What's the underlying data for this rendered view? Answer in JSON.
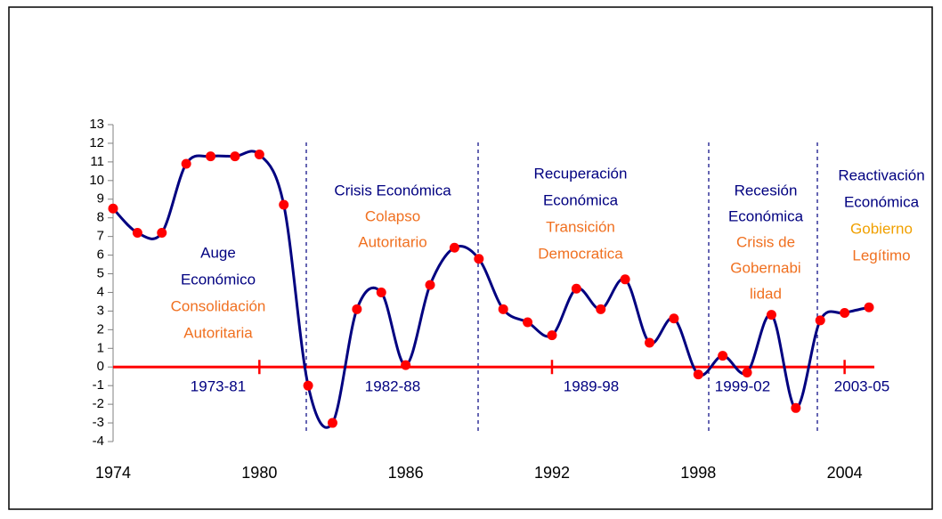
{
  "chart_data": {
    "type": "line",
    "x": [
      1974,
      1975,
      1976,
      1977,
      1978,
      1979,
      1980,
      1981,
      1982,
      1983,
      1984,
      1985,
      1986,
      1987,
      1988,
      1989,
      1990,
      1991,
      1992,
      1993,
      1994,
      1995,
      1996,
      1997,
      1998,
      1999,
      2000,
      2001,
      2002,
      2003,
      2004,
      2005
    ],
    "series": [
      {
        "color": "#000080",
        "marker_color": "#ff0000",
        "values": [
          8.5,
          7.2,
          7.2,
          10.9,
          11.3,
          11.3,
          11.4,
          8.7,
          -1.0,
          -3.0,
          3.1,
          4.0,
          0.1,
          4.4,
          6.4,
          5.8,
          3.1,
          2.4,
          1.7,
          4.2,
          3.1,
          4.7,
          1.3,
          2.6,
          -0.4,
          0.6,
          -0.3,
          2.8,
          -2.2,
          2.5,
          2.9,
          3.2
        ]
      }
    ],
    "xlim": [
      1974,
      2005
    ],
    "xticks": [
      1974,
      1980,
      1986,
      1992,
      1998,
      2004
    ],
    "ylim": [
      -4,
      13
    ],
    "yticks": [
      -4,
      -3,
      -2,
      -1,
      0,
      1,
      2,
      3,
      4,
      5,
      6,
      7,
      8,
      9,
      10,
      11,
      12,
      13
    ],
    "zero_line_color": "#ff0000",
    "periods": [
      "1973-81",
      "1982-88",
      "1989-98",
      "1999-02",
      "2003-05"
    ],
    "annotations": [
      {
        "lines": [
          {
            "text": "Auge",
            "color": "#000080"
          },
          {
            "text": "Económico",
            "color": "#000080"
          },
          {
            "text": "Consolidación",
            "color": "#f07020"
          },
          {
            "text": "Autoritaria",
            "color": "#f07020"
          }
        ]
      },
      {
        "lines": [
          {
            "text": "Crisis Económica",
            "color": "#000080"
          },
          {
            "text": "Colapso",
            "color": "#f07020"
          },
          {
            "text": "Autoritario",
            "color": "#f07020"
          }
        ]
      },
      {
        "lines": [
          {
            "text": "Recuperación",
            "color": "#000080"
          },
          {
            "text": "Económica",
            "color": "#000080"
          },
          {
            "text": "Transición",
            "color": "#f07020"
          },
          {
            "text": "Democratica",
            "color": "#f07020"
          }
        ]
      },
      {
        "lines": [
          {
            "text": "Recesión",
            "color": "#000080"
          },
          {
            "text": "Económica",
            "color": "#000080"
          },
          {
            "text": "Crisis de",
            "color": "#f07020"
          },
          {
            "text": "Gobernabi",
            "color": "#f07020"
          },
          {
            "text": "lidad",
            "color": "#f07020"
          }
        ]
      },
      {
        "lines": [
          {
            "text": "Reactivación",
            "color": "#000080"
          },
          {
            "text": "Económica",
            "color": "#000080"
          },
          {
            "text": "Gobierno",
            "color": "#f0a000"
          },
          {
            "text": "Legítimo",
            "color": "#f07020"
          }
        ]
      }
    ]
  }
}
